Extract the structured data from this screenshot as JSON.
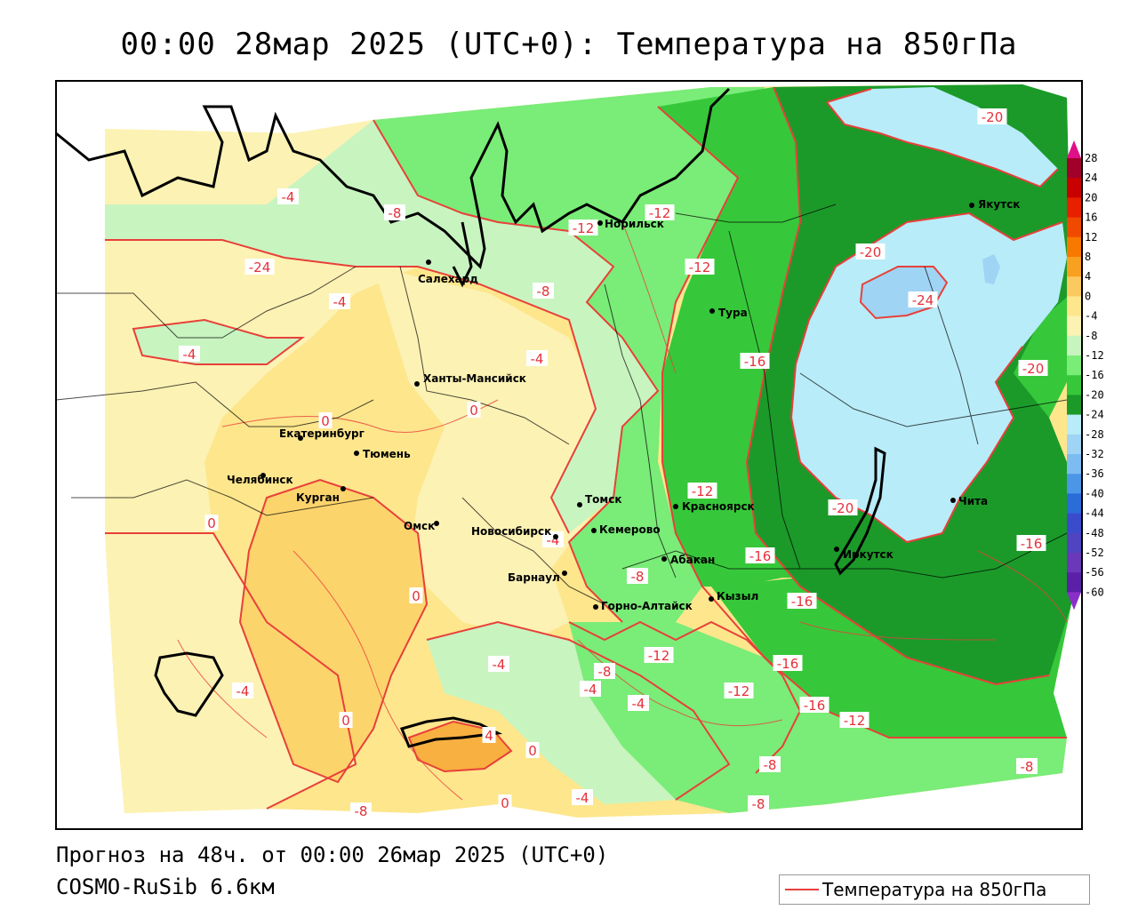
{
  "header": {
    "title": "00:00 28мар 2025 (UTC+0): Температура на 850гПа"
  },
  "footer": {
    "forecast": "Прогноз на 48ч. от 00:00 26мар 2025 (UTC+0)",
    "model": "COSMO-RuSib 6.6км",
    "legend_label": "Температура на 850гПа"
  },
  "colors": {
    "isoline": "#e8403a",
    "boundary": "#000000"
  },
  "colorbar": {
    "levels": [
      "28",
      "24",
      "20",
      "16",
      "12",
      "8",
      "4",
      "0",
      "-4",
      "-8",
      "-12",
      "-16",
      "-20",
      "-24",
      "-28",
      "-32",
      "-36",
      "-40",
      "-44",
      "-48",
      "-52",
      "-56",
      "-60"
    ],
    "colors": [
      "#a0002a",
      "#c80000",
      "#e82000",
      "#f04a00",
      "#f87800",
      "#f8a020",
      "#fcc860",
      "#fde68c",
      "#fcf2b4",
      "#c8f4c0",
      "#7aec78",
      "#36c83a",
      "#1b9a2a",
      "#b8ecf8",
      "#a0d4f4",
      "#7cbcf0",
      "#4c96e8",
      "#2a6cd8",
      "#3a4ccc",
      "#5044c0",
      "#6a38b8",
      "#5a20a8",
      "#3a1090"
    ]
  },
  "cities": [
    {
      "name": "Норильск"
    },
    {
      "name": "Салехард"
    },
    {
      "name": "Тура"
    },
    {
      "name": "Якутск"
    },
    {
      "name": "Ханты-Мансийск"
    },
    {
      "name": "Екатеринбург"
    },
    {
      "name": "Тюмень"
    },
    {
      "name": "Челябинск"
    },
    {
      "name": "Курган"
    },
    {
      "name": "Омск"
    },
    {
      "name": "Новосибирск"
    },
    {
      "name": "Томск"
    },
    {
      "name": "Кемерово"
    },
    {
      "name": "Барнаул"
    },
    {
      "name": "Горно-Алтайск"
    },
    {
      "name": "Абакан"
    },
    {
      "name": "Кызыл"
    },
    {
      "name": "Красноярск"
    },
    {
      "name": "Иркутск"
    },
    {
      "name": "Чита"
    }
  ],
  "isoline_labels": [
    {
      "text": "-20"
    },
    {
      "text": "-12"
    },
    {
      "text": "-12"
    },
    {
      "text": "-8"
    },
    {
      "text": "-4"
    },
    {
      "text": "-24"
    },
    {
      "text": "-4"
    },
    {
      "text": "-8"
    },
    {
      "text": "-12"
    },
    {
      "text": "-20"
    },
    {
      "text": "-24"
    },
    {
      "text": "-4"
    },
    {
      "text": "-4"
    },
    {
      "text": "-16"
    },
    {
      "text": "-20"
    },
    {
      "text": "0"
    },
    {
      "text": "0"
    },
    {
      "text": "0"
    },
    {
      "text": "-12"
    },
    {
      "text": "-20"
    },
    {
      "text": "-4"
    },
    {
      "text": "-16"
    },
    {
      "text": "-8"
    },
    {
      "text": "-16"
    },
    {
      "text": "0"
    },
    {
      "text": "-16"
    },
    {
      "text": "-4"
    },
    {
      "text": "-12"
    },
    {
      "text": "-16"
    },
    {
      "text": "-4"
    },
    {
      "text": "-8"
    },
    {
      "text": "-4"
    },
    {
      "text": "0"
    },
    {
      "text": "4"
    },
    {
      "text": "-12"
    },
    {
      "text": "-16"
    },
    {
      "text": "-12"
    },
    {
      "text": "-4"
    },
    {
      "text": "0"
    },
    {
      "text": "-8"
    },
    {
      "text": "-8"
    },
    {
      "text": "-8"
    },
    {
      "text": "0"
    },
    {
      "text": "-4"
    },
    {
      "text": "-8"
    }
  ]
}
